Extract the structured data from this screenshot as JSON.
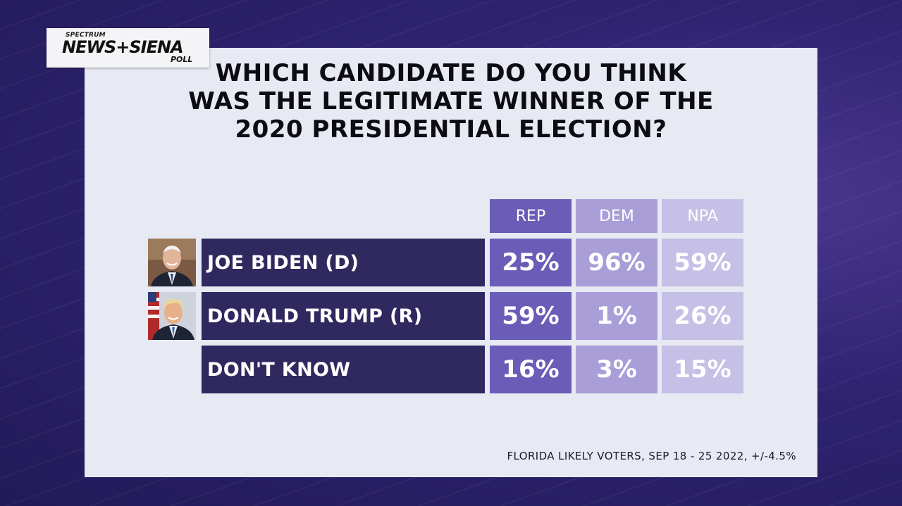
{
  "logo": {
    "top": "SPECTRUM",
    "main": "NEWS+SIENA",
    "sub": "POLL"
  },
  "title_lines": [
    "WHICH CANDIDATE DO YOU THINK",
    "WAS THE LEGITIMATE WINNER OF THE",
    "2020 PRESIDENTIAL ELECTION?"
  ],
  "footer": "FLORIDA LIKELY VOTERS, SEP 18 - 25 2022, +/-4.5%",
  "colors": {
    "rep": "#6b5cb8",
    "dem": "#a99ed8",
    "npa": "#c6bfe6",
    "label_bg": "#2f295f",
    "panel": "#e7e9f3",
    "background": "#2f2370"
  },
  "photos": [
    "biden-portrait",
    "trump-portrait"
  ],
  "chart_data": {
    "type": "table",
    "title": "WHICH CANDIDATE DO YOU THINK WAS THE LEGITIMATE WINNER OF THE 2020 PRESIDENTIAL ELECTION?",
    "columns": [
      "REP",
      "DEM",
      "NPA"
    ],
    "rows": [
      {
        "label": "JOE BIDEN (D)",
        "values": [
          "25%",
          "96%",
          "59%"
        ]
      },
      {
        "label": "DONALD TRUMP (R)",
        "values": [
          "59%",
          "1%",
          "26%"
        ]
      },
      {
        "label": "DON'T KNOW",
        "values": [
          "16%",
          "3%",
          "15%"
        ]
      }
    ],
    "series": [
      {
        "name": "REP",
        "values": [
          25,
          59,
          16
        ]
      },
      {
        "name": "DEM",
        "values": [
          96,
          1,
          3
        ]
      },
      {
        "name": "NPA",
        "values": [
          59,
          26,
          15
        ]
      }
    ],
    "categories": [
      "JOE BIDEN (D)",
      "DONALD TRUMP (R)",
      "DON'T KNOW"
    ],
    "note": "FLORIDA LIKELY VOTERS, SEP 18 - 25 2022, +/-4.5%"
  }
}
